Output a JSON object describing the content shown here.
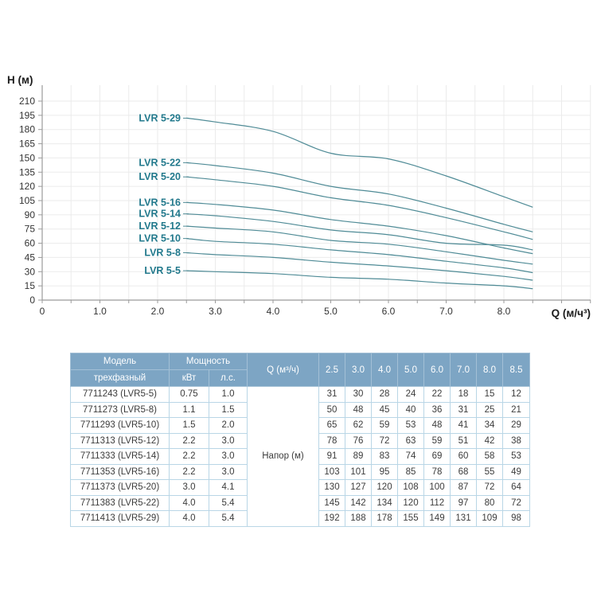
{
  "colors": {
    "header_bg": "#7da5c4",
    "header_text": "#ffffff",
    "table_border": "#b9d6e6",
    "body_text": "#3c3c3c",
    "curve": "#4f8b96",
    "curve_label": "#22798c",
    "grid": "#ebebeb",
    "axis": "#9b9b9b",
    "tick_text": "#333333"
  },
  "chart_data": {
    "type": "line",
    "title": "",
    "xlabel": "Q (м/ч³)",
    "ylabel": "Н (м)",
    "x": [
      2.5,
      3.0,
      4.0,
      5.0,
      6.0,
      7.0,
      8.0,
      8.5
    ],
    "xlim": [
      0,
      9.5
    ],
    "ylim": [
      0,
      210
    ],
    "grid": true,
    "legend_position": "inline-labels-left-of-curves",
    "x_tick_labels": [
      "0",
      "1.0",
      "2.0",
      "3.0",
      "4.0",
      "5.0",
      "6.0",
      "7.0",
      "8.0"
    ],
    "y_tick_labels": [
      "0",
      "15",
      "30",
      "45",
      "60",
      "75",
      "90",
      "105",
      "120",
      "135",
      "150",
      "165",
      "180",
      "195",
      "210"
    ],
    "series": [
      {
        "name": "LVR 5-29",
        "values": [
          192,
          188,
          178,
          155,
          149,
          131,
          109,
          98
        ]
      },
      {
        "name": "LVR 5-22",
        "values": [
          145,
          142,
          134,
          120,
          112,
          97,
          80,
          72
        ]
      },
      {
        "name": "LVR 5-20",
        "values": [
          130,
          127,
          120,
          108,
          100,
          87,
          72,
          64
        ]
      },
      {
        "name": "LVR 5-16",
        "values": [
          103,
          101,
          95,
          85,
          78,
          68,
          55,
          49
        ]
      },
      {
        "name": "LVR 5-14",
        "values": [
          91,
          89,
          83,
          74,
          69,
          60,
          58,
          53
        ]
      },
      {
        "name": "LVR 5-12",
        "values": [
          78,
          76,
          72,
          63,
          59,
          51,
          42,
          38
        ]
      },
      {
        "name": "LVR 5-10",
        "values": [
          65,
          62,
          59,
          53,
          48,
          41,
          34,
          29
        ]
      },
      {
        "name": "LVR 5-8",
        "values": [
          50,
          48,
          45,
          40,
          36,
          31,
          25,
          21
        ]
      },
      {
        "name": "LVR 5-5",
        "values": [
          31,
          30,
          28,
          24,
          22,
          18,
          15,
          12
        ]
      }
    ]
  },
  "table": {
    "model_header": "Модель",
    "model_subheader": "трехфазный",
    "power_header": "Мощность",
    "power_kw": "кВт",
    "power_hp": "л.с.",
    "q_header": "Q (м³/ч)",
    "flow_columns": [
      "2.5",
      "3.0",
      "4.0",
      "5.0",
      "6.0",
      "7.0",
      "8.0",
      "8.5"
    ],
    "head_label": "Напор (м)",
    "rows": [
      {
        "model": "7711243 (LVR5-5)",
        "kw": "0.75",
        "hp": "1.0",
        "values": [
          31,
          30,
          28,
          24,
          22,
          18,
          15,
          12
        ]
      },
      {
        "model": "7711273 (LVR5-8)",
        "kw": "1.1",
        "hp": "1.5",
        "values": [
          50,
          48,
          45,
          40,
          36,
          31,
          25,
          21
        ]
      },
      {
        "model": "7711293 (LVR5-10)",
        "kw": "1.5",
        "hp": "2.0",
        "values": [
          65,
          62,
          59,
          53,
          48,
          41,
          34,
          29
        ]
      },
      {
        "model": "7711313 (LVR5-12)",
        "kw": "2.2",
        "hp": "3.0",
        "values": [
          78,
          76,
          72,
          63,
          59,
          51,
          42,
          38
        ]
      },
      {
        "model": "7711333 (LVR5-14)",
        "kw": "2.2",
        "hp": "3.0",
        "values": [
          91,
          89,
          83,
          74,
          69,
          60,
          58,
          53
        ]
      },
      {
        "model": "7711353 (LVR5-16)",
        "kw": "2.2",
        "hp": "3.0",
        "values": [
          103,
          101,
          95,
          85,
          78,
          68,
          55,
          49
        ]
      },
      {
        "model": "7711373 (LVR5-20)",
        "kw": "3.0",
        "hp": "4.1",
        "values": [
          130,
          127,
          120,
          108,
          100,
          87,
          72,
          64
        ]
      },
      {
        "model": "7711383 (LVR5-22)",
        "kw": "4.0",
        "hp": "5.4",
        "values": [
          145,
          142,
          134,
          120,
          112,
          97,
          80,
          72
        ]
      },
      {
        "model": "7711413 (LVR5-29)",
        "kw": "4.0",
        "hp": "5.4",
        "values": [
          192,
          188,
          178,
          155,
          149,
          131,
          109,
          98
        ]
      }
    ]
  }
}
